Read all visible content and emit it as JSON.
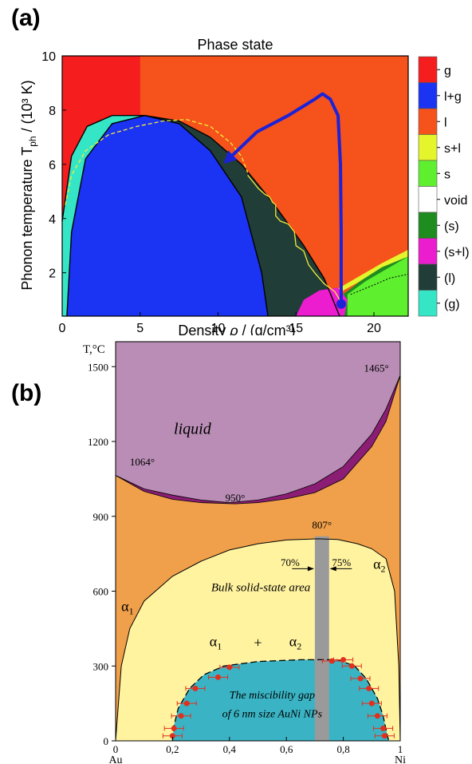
{
  "panel_a_label": "(a)",
  "panel_b_label": "(b)",
  "chart_data": [
    {
      "type": "heatmap",
      "title": "Phase state",
      "xlabel": "Density ρ / (g/cm³)",
      "ylabel": "Phonon temperature T_ph / (10³ K)",
      "ylabel_main": "Phonon temperature  T",
      "ylabel_sub": "ph",
      "ylabel_tail": " / (10³ K)",
      "xlabel_main": "Density ",
      "xlabel_rho": "ρ",
      "xlabel_tail": " / (g/cm³)",
      "xlim": [
        0,
        22.2
      ],
      "ylim": [
        0.4,
        10
      ],
      "x_ticks": [
        0,
        5,
        10,
        15,
        20
      ],
      "y_ticks": [
        2,
        4,
        6,
        8,
        10
      ],
      "legend_position": "right",
      "legend": [
        {
          "label": "g",
          "color": "#f51d1d"
        },
        {
          "label": "l+g",
          "color": "#1b33f2"
        },
        {
          "label": "l",
          "color": "#f5521c"
        },
        {
          "label": "s+l",
          "color": "#e4f52c"
        },
        {
          "label": "s",
          "color": "#5ef02e"
        },
        {
          "label": "void",
          "color": "#ffffff"
        },
        {
          "label": "(s)",
          "color": "#1e8c1e"
        },
        {
          "label": "(s+l)",
          "color": "#ec1ccf"
        },
        {
          "label": "(l)",
          "color": "#213d38"
        },
        {
          "label": "(g)",
          "color": "#35e6c6"
        }
      ],
      "regions": {
        "g_region": {
          "x": [
            0,
            5
          ],
          "y": [
            0.4,
            10
          ]
        },
        "liquid_gas_dome": [
          [
            0.3,
            0.4
          ],
          [
            0.6,
            3.5
          ],
          [
            1.5,
            6.2
          ],
          [
            3.2,
            7.5
          ],
          [
            5.3,
            7.8
          ],
          [
            7.5,
            7.5
          ],
          [
            9.5,
            6.5
          ],
          [
            11.5,
            4.8
          ],
          [
            12.8,
            2.0
          ],
          [
            13.2,
            0.4
          ]
        ],
        "gas_metastable": [
          [
            0,
            3.9
          ],
          [
            0.6,
            6.3
          ],
          [
            1.6,
            7.4
          ],
          [
            3.2,
            7.8
          ],
          [
            5.3,
            7.8
          ],
          [
            3.2,
            7.5
          ],
          [
            1.5,
            6.2
          ],
          [
            0.6,
            3.5
          ],
          [
            0.3,
            0.4
          ],
          [
            0,
            0.4
          ]
        ],
        "liquid_metastable_outer": [
          [
            5.3,
            7.8
          ],
          [
            7.5,
            7.6
          ],
          [
            9.5,
            7.0
          ],
          [
            11.5,
            6.0
          ],
          [
            13.5,
            4.6
          ],
          [
            15.5,
            3.0
          ],
          [
            16.8,
            1.8
          ],
          [
            17.8,
            0.4
          ]
        ],
        "sl_metastable": [
          [
            15.0,
            0.4
          ],
          [
            15.5,
            1.0
          ],
          [
            16.5,
            1.35
          ],
          [
            17.7,
            1.45
          ],
          [
            18.3,
            1.0
          ],
          [
            18.1,
            0.4
          ]
        ],
        "s_metastable": [
          [
            17.9,
            0.4
          ],
          [
            18.0,
            1.2
          ],
          [
            18.6,
            1.45
          ],
          [
            20.0,
            2.1
          ],
          [
            22.2,
            2.8
          ],
          [
            22.2,
            0.4
          ]
        ],
        "sl_region": [
          [
            17.5,
            1.35
          ],
          [
            19.0,
            1.85
          ],
          [
            20.5,
            2.35
          ],
          [
            22.2,
            2.85
          ],
          [
            22.2,
            2.6
          ],
          [
            20.5,
            2.2
          ],
          [
            19.0,
            1.65
          ],
          [
            17.9,
            1.3
          ]
        ],
        "s_region": [
          [
            18.3,
            1.2
          ],
          [
            19.5,
            1.7
          ],
          [
            21.0,
            2.2
          ],
          [
            22.2,
            2.6
          ],
          [
            22.2,
            0.4
          ],
          [
            18.3,
            0.4
          ]
        ]
      },
      "trajectory": [
        [
          17.9,
          0.85
        ],
        [
          17.9,
          3.5
        ],
        [
          17.85,
          6.0
        ],
        [
          17.7,
          7.8
        ],
        [
          17.2,
          8.4
        ],
        [
          16.7,
          8.6
        ],
        [
          16.2,
          8.4
        ],
        [
          14.5,
          7.8
        ],
        [
          12.5,
          7.2
        ],
        [
          10.5,
          6.1
        ]
      ],
      "binodal_dashed": [
        [
          0.2,
          4.5
        ],
        [
          0.6,
          5.6
        ],
        [
          1.5,
          6.5
        ],
        [
          3.0,
          7.1
        ],
        [
          4.8,
          7.4
        ],
        [
          6.5,
          7.6
        ],
        [
          8.0,
          7.65
        ],
        [
          9.5,
          7.4
        ],
        [
          10.8,
          6.8
        ],
        [
          11.5,
          6.3
        ],
        [
          11.9,
          5.7
        ]
      ],
      "yellow_solid": [
        [
          11.9,
          5.6
        ],
        [
          12.6,
          5.1
        ],
        [
          13.0,
          4.9
        ],
        [
          13.3,
          4.8
        ],
        [
          13.5,
          4.6
        ],
        [
          13.7,
          4.5
        ],
        [
          13.7,
          4.1
        ],
        [
          14.0,
          3.9
        ],
        [
          14.5,
          3.8
        ],
        [
          14.9,
          3.5
        ],
        [
          15.0,
          3.0
        ],
        [
          15.5,
          2.8
        ],
        [
          15.8,
          2.3
        ],
        [
          16.2,
          2.0
        ],
        [
          16.8,
          1.6
        ],
        [
          17.5,
          1.3
        ],
        [
          17.9,
          0.9
        ]
      ],
      "dotted_s": [
        [
          18.5,
          1.2
        ],
        [
          20.0,
          1.55
        ],
        [
          21.0,
          1.8
        ],
        [
          22.2,
          1.95
        ]
      ],
      "end_point": [
        17.9,
        0.85
      ]
    },
    {
      "type": "line",
      "title": "",
      "xlabel": "",
      "ylabel": "T,°C",
      "xlim": [
        0,
        1
      ],
      "ylim": [
        0,
        1600
      ],
      "x_ticks": [
        "0",
        "0,2",
        "0,4",
        "0,6",
        "0,8",
        "1"
      ],
      "y_ticks": [
        0,
        300,
        600,
        900,
        1200,
        1500
      ],
      "x_end_labels": {
        "left": "Au",
        "right": "Ni"
      },
      "labels": {
        "liquid": "liquid",
        "bulk": "Bulk solid-state area",
        "alpha": "α",
        "sub1": "1",
        "sub2": "2",
        "plus": "+",
        "gap_line1": "The miscibility gap",
        "gap_line2": "of 6 nm size AuNi NPs",
        "t1064": "1064°",
        "t950": "950°",
        "t1465": "1465°",
        "t807": "807°",
        "p70": "70%",
        "p75": "75%"
      },
      "liquidus": [
        [
          0,
          1064
        ],
        [
          0.1,
          1010
        ],
        [
          0.2,
          985
        ],
        [
          0.3,
          965
        ],
        [
          0.4,
          955
        ],
        [
          0.5,
          965
        ],
        [
          0.6,
          990
        ],
        [
          0.7,
          1030
        ],
        [
          0.8,
          1100
        ],
        [
          0.9,
          1230
        ],
        [
          0.95,
          1330
        ],
        [
          1,
          1465
        ]
      ],
      "solidus": [
        [
          0,
          1064
        ],
        [
          0.1,
          1000
        ],
        [
          0.2,
          968
        ],
        [
          0.3,
          955
        ],
        [
          0.42,
          950
        ],
        [
          0.5,
          955
        ],
        [
          0.6,
          970
        ],
        [
          0.7,
          995
        ],
        [
          0.8,
          1050
        ],
        [
          0.9,
          1180
        ],
        [
          0.95,
          1280
        ],
        [
          1,
          1465
        ]
      ],
      "bulk_gap": [
        [
          0,
          0
        ],
        [
          0.02,
          300
        ],
        [
          0.05,
          450
        ],
        [
          0.1,
          560
        ],
        [
          0.2,
          660
        ],
        [
          0.3,
          720
        ],
        [
          0.4,
          765
        ],
        [
          0.5,
          790
        ],
        [
          0.6,
          805
        ],
        [
          0.71,
          810
        ],
        [
          0.78,
          807
        ],
        [
          0.85,
          790
        ],
        [
          0.9,
          770
        ],
        [
          0.95,
          730
        ],
        [
          0.98,
          600
        ],
        [
          0.995,
          300
        ],
        [
          1,
          0
        ]
      ],
      "nano_gap": [
        [
          0.2,
          0
        ],
        [
          0.205,
          60
        ],
        [
          0.22,
          130
        ],
        [
          0.26,
          210
        ],
        [
          0.31,
          265
        ],
        [
          0.38,
          300
        ],
        [
          0.5,
          318
        ],
        [
          0.65,
          325
        ],
        [
          0.78,
          325
        ],
        [
          0.84,
          300
        ],
        [
          0.88,
          250
        ],
        [
          0.92,
          170
        ],
        [
          0.94,
          100
        ],
        [
          0.955,
          20
        ],
        [
          0.96,
          0
        ]
      ],
      "nano_points": [
        [
          0.2,
          20
        ],
        [
          0.205,
          50
        ],
        [
          0.23,
          100
        ],
        [
          0.25,
          150
        ],
        [
          0.28,
          210
        ],
        [
          0.36,
          255
        ],
        [
          0.4,
          295
        ],
        [
          0.76,
          320
        ],
        [
          0.8,
          325
        ],
        [
          0.83,
          300
        ],
        [
          0.86,
          250
        ],
        [
          0.89,
          210
        ],
        [
          0.9,
          150
        ],
        [
          0.92,
          100
        ],
        [
          0.94,
          50
        ],
        [
          0.945,
          20
        ]
      ],
      "gray_band": [
        0.7,
        0.75
      ],
      "colors": {
        "liquid": "#b98db5",
        "two_phase": "#8b1d74",
        "solid_solution": "#f0a04a",
        "bulk_gap": "#fff3a0",
        "nano_gap": "#3ab4c4",
        "band": "#9a9a9a",
        "points": "#e0301e"
      }
    }
  ]
}
